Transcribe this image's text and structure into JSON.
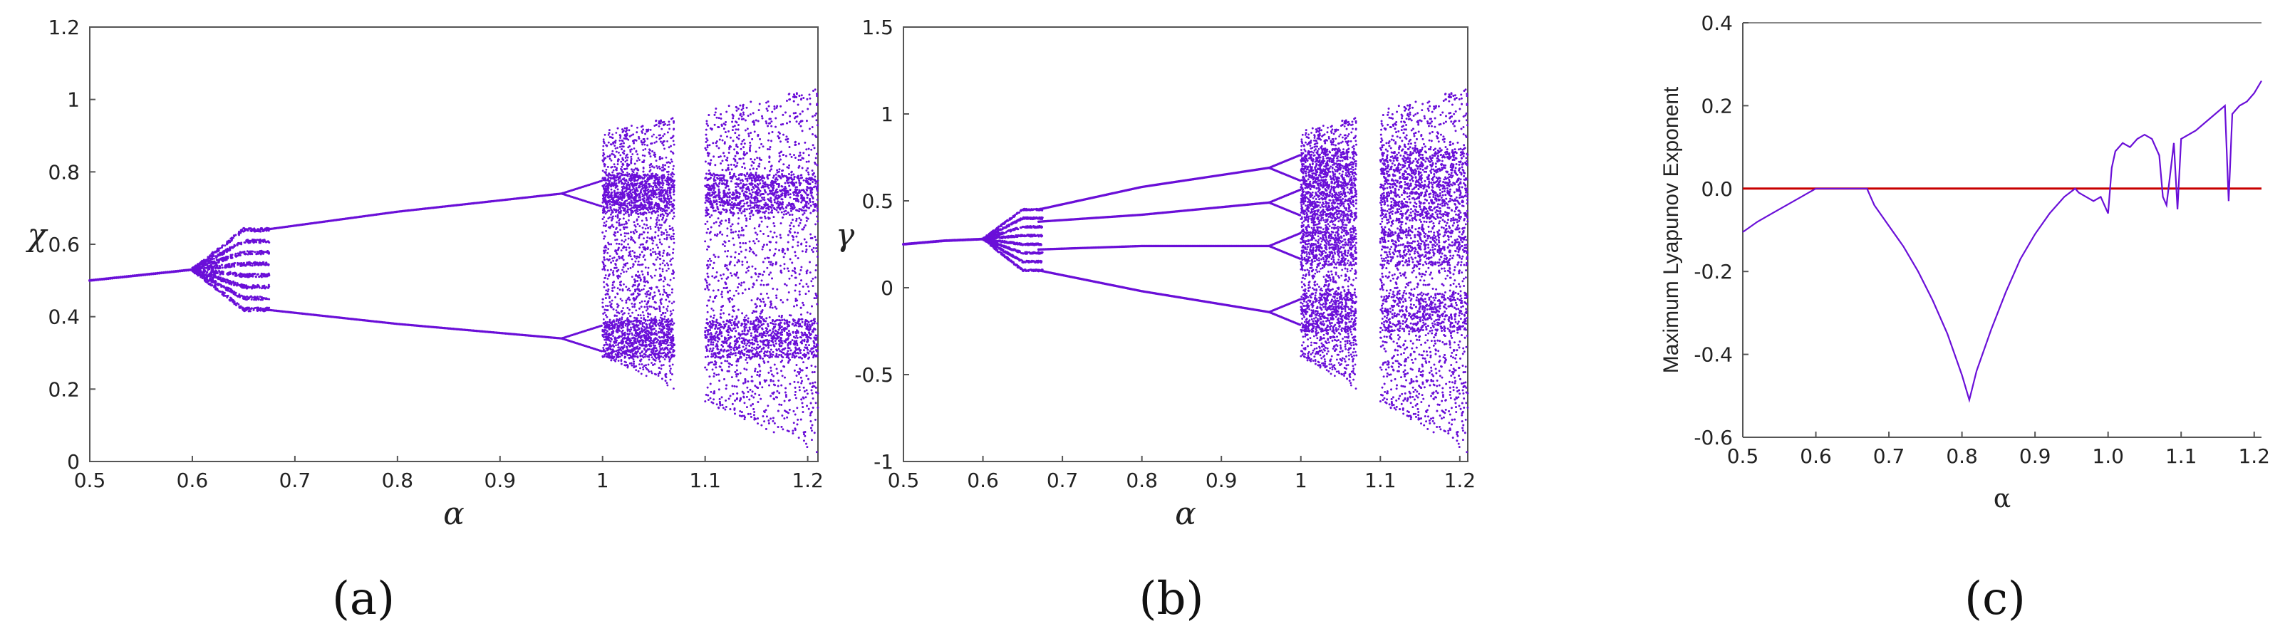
{
  "colors": {
    "series": "#6a0fd8",
    "zero_line": "#c80000",
    "axis": "#555555",
    "grid_top": "#888888"
  },
  "chart_data": [
    {
      "id": "a",
      "type": "scatter",
      "caption": "(a)",
      "title": "",
      "xlabel": "α",
      "ylabel": "χ",
      "xlim": [
        0.5,
        1.21
      ],
      "ylim": [
        0,
        1.2
      ],
      "xticks": [
        0.5,
        0.6,
        0.7,
        0.8,
        0.9,
        1,
        1.1,
        1.2
      ],
      "yticks": [
        0,
        0.2,
        0.4,
        0.6,
        0.8,
        1,
        1.2
      ],
      "xtick_labels": [
        "0.5",
        "0.6",
        "0.7",
        "0.8",
        "0.9",
        "1",
        "1.1",
        "1.2"
      ],
      "ytick_labels": [
        "0",
        "0.2",
        "0.4",
        "0.6",
        "0.8",
        "1",
        "1.2"
      ],
      "grid": false,
      "description_points": {
        "fixed_branch": [
          [
            0.5,
            0.5
          ],
          [
            0.55,
            0.515
          ],
          [
            0.6,
            0.53
          ]
        ],
        "period_branches": [
          [
            [
              0.67,
              0.64
            ],
            [
              0.8,
              0.69
            ],
            [
              0.96,
              0.74
            ]
          ],
          [
            [
              0.67,
              0.42
            ],
            [
              0.8,
              0.38
            ],
            [
              0.96,
              0.34
            ]
          ]
        ],
        "chaotic_ranges": [
          [
            1.0,
            1.07
          ],
          [
            1.1,
            1.21
          ]
        ],
        "chaotic_gap": [
          1.075,
          1.095
        ]
      }
    },
    {
      "id": "b",
      "type": "scatter",
      "caption": "(b)",
      "title": "",
      "xlabel": "α",
      "ylabel": "γ",
      "xlim": [
        0.5,
        1.21
      ],
      "ylim": [
        -1,
        1.5
      ],
      "xticks": [
        0.5,
        0.6,
        0.7,
        0.8,
        0.9,
        1,
        1.1,
        1.2
      ],
      "yticks": [
        -1,
        -0.5,
        0,
        0.5,
        1,
        1.5
      ],
      "xtick_labels": [
        "0.5",
        "0.6",
        "0.7",
        "0.8",
        "0.9",
        "1",
        "1.1",
        "1.2"
      ],
      "ytick_labels": [
        "-1",
        "-0.5",
        "0",
        "0.5",
        "1",
        "1.5"
      ],
      "grid": false,
      "description_points": {
        "fixed_branch": [
          [
            0.5,
            0.25
          ],
          [
            0.55,
            0.27
          ],
          [
            0.6,
            0.28
          ]
        ],
        "period_branches": [
          [
            [
              0.67,
              0.45
            ],
            [
              0.8,
              0.58
            ],
            [
              0.96,
              0.69
            ]
          ],
          [
            [
              0.67,
              0.38
            ],
            [
              0.8,
              0.42
            ],
            [
              0.96,
              0.49
            ]
          ],
          [
            [
              0.67,
              0.22
            ],
            [
              0.8,
              0.24
            ],
            [
              0.96,
              0.24
            ]
          ],
          [
            [
              0.67,
              0.1
            ],
            [
              0.8,
              -0.02
            ],
            [
              0.96,
              -0.14
            ]
          ]
        ],
        "chaotic_ranges": [
          [
            1.0,
            1.07
          ],
          [
            1.1,
            1.21
          ]
        ],
        "chaotic_gap": [
          1.075,
          1.095
        ]
      }
    },
    {
      "id": "c",
      "type": "line",
      "caption": "(c)",
      "title": "",
      "xlabel": "α",
      "ylabel": "Maximum  Lyapunov Exponent",
      "xlim": [
        0.5,
        1.21
      ],
      "ylim": [
        -0.6,
        0.4
      ],
      "xticks": [
        0.5,
        0.6,
        0.7,
        0.8,
        0.9,
        1,
        1.1,
        1.2
      ],
      "yticks": [
        -0.6,
        -0.4,
        -0.2,
        0,
        0.2,
        0.4
      ],
      "xtick_labels": [
        "0.5",
        "0.6",
        "0.7",
        "0.8",
        "0.9",
        "1.0",
        "1.1",
        "1.2"
      ],
      "ytick_labels": [
        "-0.6",
        "-0.4",
        "-0.2",
        "0.0",
        "0.2",
        "0.4"
      ],
      "grid": false,
      "reference_line_y": 0,
      "series": [
        {
          "x": [
            0.5,
            0.52,
            0.54,
            0.56,
            0.58,
            0.6,
            0.62,
            0.64,
            0.66,
            0.67,
            0.68,
            0.7,
            0.72,
            0.74,
            0.76,
            0.78,
            0.8,
            0.81,
            0.82,
            0.84,
            0.86,
            0.88,
            0.9,
            0.92,
            0.94,
            0.955,
            0.96,
            0.97,
            0.98,
            0.99,
            1.0,
            1.005,
            1.01,
            1.02,
            1.03,
            1.04,
            1.05,
            1.06,
            1.07,
            1.075,
            1.08,
            1.09,
            1.095,
            1.1,
            1.12,
            1.14,
            1.16,
            1.165,
            1.17,
            1.18,
            1.19,
            1.2,
            1.21
          ],
          "y": [
            -0.105,
            -0.08,
            -0.06,
            -0.04,
            -0.02,
            0.0,
            0.0,
            0.0,
            0.0,
            0.0,
            -0.04,
            -0.09,
            -0.14,
            -0.2,
            -0.27,
            -0.35,
            -0.45,
            -0.51,
            -0.44,
            -0.34,
            -0.25,
            -0.17,
            -0.11,
            -0.06,
            -0.02,
            0.0,
            -0.01,
            -0.02,
            -0.03,
            -0.02,
            -0.06,
            0.05,
            0.09,
            0.11,
            0.1,
            0.12,
            0.13,
            0.12,
            0.08,
            -0.02,
            -0.04,
            0.11,
            -0.05,
            0.12,
            0.14,
            0.17,
            0.2,
            -0.03,
            0.18,
            0.2,
            0.21,
            0.23,
            0.26
          ]
        }
      ]
    }
  ]
}
